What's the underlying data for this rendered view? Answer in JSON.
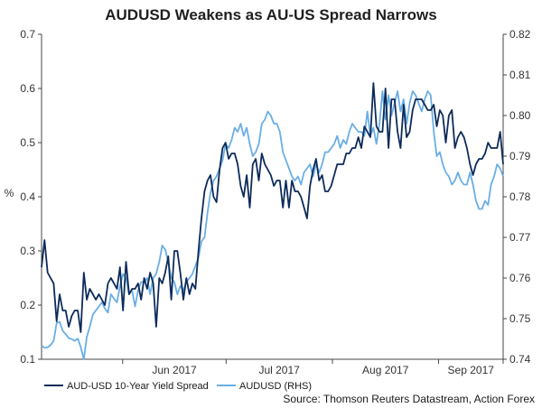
{
  "chart_data": {
    "type": "line",
    "title": "AUDUSD Weakens as AU-US Spread Narrows",
    "ylabel_left": "%",
    "ylim_left": [
      0.1,
      0.7
    ],
    "yticks_left": [
      "0.1",
      "0.2",
      "0.3",
      "0.4",
      "0.5",
      "0.6",
      "0.7"
    ],
    "ylim_right": [
      0.74,
      0.82
    ],
    "yticks_right": [
      "0.74",
      "0.75",
      "0.76",
      "0.77",
      "0.78",
      "0.79",
      "0.80",
      "0.81",
      "0.82"
    ],
    "x_tick_labels": [
      "Jun 2017",
      "Jul 2017",
      "Aug 2017",
      "Sep 2017"
    ],
    "grid": false,
    "legend_position": "bottom-left",
    "source": "Source: Thomson Reuters Datastream, Action Forex",
    "colors": {
      "spread": "#0d2b5a",
      "audusd": "#6aaee6",
      "axis": "#444444"
    },
    "series": [
      {
        "name": "AUD-USD 10-Year Yield Spread",
        "axis": "left",
        "values": [
          0.27,
          0.32,
          0.26,
          0.25,
          0.24,
          0.17,
          0.22,
          0.19,
          0.19,
          0.16,
          0.18,
          0.19,
          0.19,
          0.15,
          0.26,
          0.21,
          0.23,
          0.22,
          0.21,
          0.22,
          0.21,
          0.2,
          0.24,
          0.25,
          0.24,
          0.23,
          0.27,
          0.19,
          0.28,
          0.22,
          0.23,
          0.23,
          0.24,
          0.21,
          0.25,
          0.23,
          0.26,
          0.24,
          0.16,
          0.25,
          0.24,
          0.26,
          0.29,
          0.21,
          0.3,
          0.3,
          0.26,
          0.21,
          0.25,
          0.22,
          0.24,
          0.23,
          0.3,
          0.36,
          0.41,
          0.43,
          0.44,
          0.4,
          0.39,
          0.45,
          0.49,
          0.5,
          0.47,
          0.48,
          0.48,
          0.46,
          0.42,
          0.4,
          0.44,
          0.38,
          0.46,
          0.47,
          0.43,
          0.48,
          0.46,
          0.45,
          0.44,
          0.42,
          0.43,
          0.43,
          0.38,
          0.43,
          0.38,
          0.43,
          0.41,
          0.41,
          0.4,
          0.38,
          0.36,
          0.42,
          0.45,
          0.47,
          0.43,
          0.44,
          0.41,
          0.41,
          0.42,
          0.44,
          0.46,
          0.46,
          0.46,
          0.48,
          0.48,
          0.49,
          0.49,
          0.51,
          0.49,
          0.53,
          0.52,
          0.51,
          0.61,
          0.53,
          0.52,
          0.52,
          0.6,
          0.49,
          0.58,
          0.58,
          0.52,
          0.49,
          0.57,
          0.51,
          0.52,
          0.56,
          0.58,
          0.58,
          0.58,
          0.57,
          0.56,
          0.56,
          0.57,
          0.53,
          0.56,
          0.55,
          0.5,
          0.55,
          0.56,
          0.49,
          0.51,
          0.52,
          0.51,
          0.49,
          0.46,
          0.44,
          0.46,
          0.47,
          0.47,
          0.48,
          0.5,
          0.49,
          0.49,
          0.49,
          0.52,
          0.46
        ]
      },
      {
        "name": "AUDUSD (RHS)",
        "axis": "right",
        "values": [
          0.7434,
          0.7428,
          0.7429,
          0.7435,
          0.7445,
          0.7489,
          0.7492,
          0.747,
          0.7462,
          0.7452,
          0.745,
          0.7445,
          0.7451,
          0.743,
          0.74,
          0.7455,
          0.748,
          0.751,
          0.752,
          0.753,
          0.754,
          0.7525,
          0.7515,
          0.756,
          0.7549,
          0.754,
          0.758,
          0.761,
          0.76,
          0.756,
          0.757,
          0.753,
          0.757,
          0.759,
          0.759,
          0.76,
          0.756,
          0.76,
          0.761,
          0.764,
          0.768,
          0.767,
          0.764,
          0.76,
          0.759,
          0.756,
          0.758,
          0.757,
          0.759,
          0.76,
          0.761,
          0.763,
          0.765,
          0.769,
          0.77,
          0.776,
          0.781,
          0.784,
          0.785,
          0.787,
          0.789,
          0.793,
          0.792,
          0.794,
          0.797,
          0.796,
          0.798,
          0.795,
          0.797,
          0.793,
          0.79,
          0.791,
          0.793,
          0.798,
          0.799,
          0.801,
          0.8,
          0.798,
          0.798,
          0.796,
          0.791,
          0.789,
          0.787,
          0.785,
          0.784,
          0.785,
          0.783,
          0.786,
          0.787,
          0.788,
          0.785,
          0.788,
          0.786,
          0.788,
          0.791,
          0.791,
          0.792,
          0.793,
          0.795,
          0.792,
          0.794,
          0.793,
          0.796,
          0.798,
          0.797,
          0.796,
          0.796,
          0.795,
          0.801,
          0.795,
          0.797,
          0.793,
          0.798,
          0.806,
          0.799,
          0.805,
          0.8,
          0.803,
          0.806,
          0.801,
          0.804,
          0.798,
          0.803,
          0.806,
          0.805,
          0.803,
          0.801,
          0.804,
          0.806,
          0.805,
          0.796,
          0.79,
          0.791,
          0.788,
          0.786,
          0.785,
          0.783,
          0.784,
          0.786,
          0.784,
          0.783,
          0.783,
          0.786,
          0.783,
          0.779,
          0.777,
          0.777,
          0.779,
          0.778,
          0.783,
          0.785,
          0.788,
          0.787,
          0.785
        ]
      }
    ]
  }
}
